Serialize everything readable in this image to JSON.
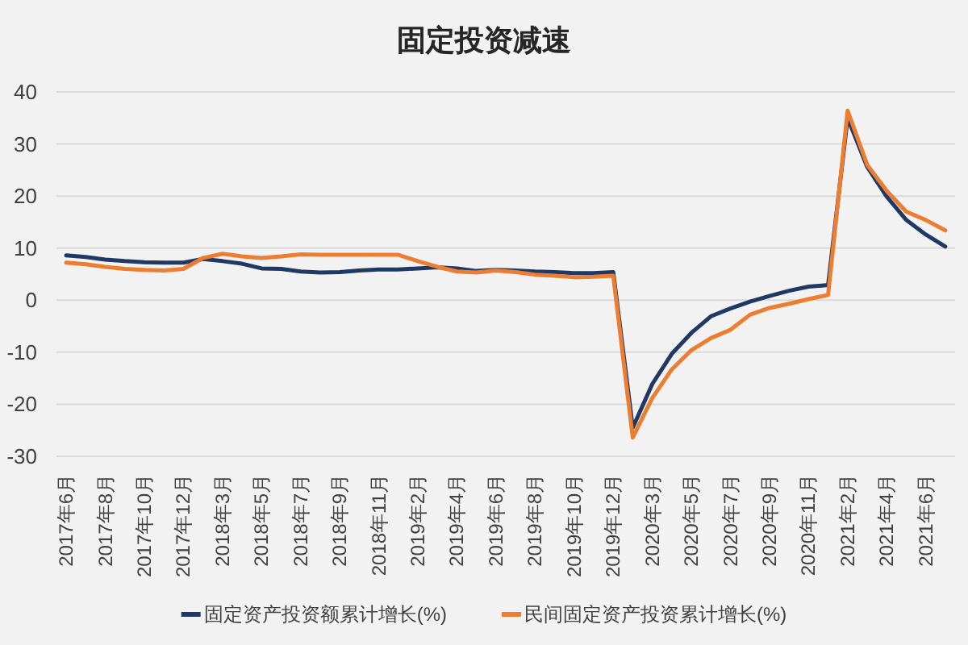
{
  "chart_data": {
    "type": "line",
    "title": "固定投资减速",
    "categories": [
      "2017年6月",
      null,
      "2017年8月",
      null,
      "2017年10月",
      null,
      "2017年12月",
      null,
      "2018年3月",
      null,
      "2018年5月",
      null,
      "2018年7月",
      null,
      "2018年9月",
      null,
      "2018年11月",
      null,
      "2019年2月",
      null,
      "2019年4月",
      null,
      "2019年6月",
      null,
      "2019年8月",
      null,
      "2019年10月",
      null,
      "2019年12月",
      null,
      "2020年3月",
      null,
      "2020年5月",
      null,
      "2020年7月",
      null,
      "2020年9月",
      null,
      "2020年11月",
      null,
      "2021年2月",
      null,
      "2021年4月",
      null,
      "2021年6月",
      null
    ],
    "series": [
      {
        "name": "固定资产投资额累计增长(%)",
        "color": "#203864",
        "values": [
          8.6,
          8.3,
          7.8,
          7.5,
          7.3,
          7.2,
          7.2,
          7.9,
          7.5,
          7.0,
          6.1,
          6.0,
          5.5,
          5.3,
          5.4,
          5.7,
          5.9,
          5.9,
          6.1,
          6.3,
          6.1,
          5.6,
          5.8,
          5.7,
          5.5,
          5.4,
          5.2,
          5.2,
          5.4,
          -24.5,
          -16.1,
          -10.3,
          -6.3,
          -3.1,
          -1.6,
          -0.3,
          0.8,
          1.8,
          2.6,
          2.9,
          35.0,
          25.6,
          19.9,
          15.4,
          12.6,
          10.3
        ]
      },
      {
        "name": "民间固定资产投资累计增长(%)",
        "color": "#ed7d31",
        "values": [
          7.2,
          6.9,
          6.4,
          6.0,
          5.8,
          5.7,
          6.0,
          8.1,
          8.9,
          8.4,
          8.1,
          8.4,
          8.8,
          8.7,
          8.7,
          8.7,
          8.7,
          8.7,
          7.5,
          6.4,
          5.5,
          5.3,
          5.7,
          5.4,
          4.9,
          4.7,
          4.4,
          4.5,
          4.7,
          -26.4,
          -18.8,
          -13.3,
          -9.6,
          -7.3,
          -5.7,
          -2.8,
          -1.5,
          -0.7,
          0.2,
          1.0,
          36.4,
          26.0,
          21.0,
          17.0,
          15.4,
          13.4
        ]
      }
    ],
    "ylim": [
      -30,
      40
    ],
    "yticks": [
      -30,
      -20,
      -10,
      0,
      10,
      20,
      30,
      40
    ],
    "grid": "y",
    "legend": "bottom"
  }
}
